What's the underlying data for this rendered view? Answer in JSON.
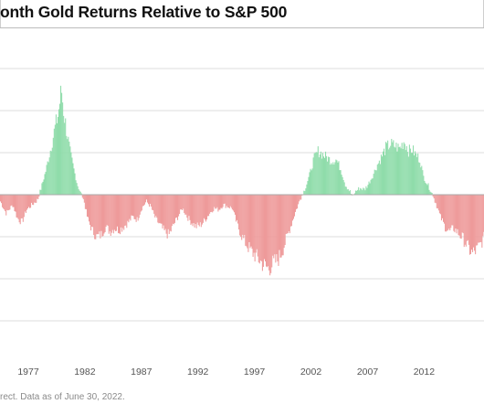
{
  "title": "onth Gold Returns Relative to S&P 500",
  "footer": "rect. Data as of June 30, 2022.",
  "colors": {
    "positive": "#8fdcaa",
    "negative": "#ee9a9a",
    "gridline": "#dddddd",
    "zeroline": "#aaaaaa"
  },
  "chart_data": {
    "type": "bar",
    "title": "onth Gold Returns Relative to S&P 500",
    "xlabel": "",
    "ylabel": "",
    "grid": true,
    "x_ticks": [
      "1977",
      "1982",
      "1987",
      "1992",
      "1997",
      "2002",
      "2007",
      "2012"
    ],
    "x_range": [
      1974.5,
      2017.3
    ],
    "y_range": [
      -150,
      150
    ],
    "anchors": [
      [
        1974.5,
        -8
      ],
      [
        1975.0,
        -22
      ],
      [
        1975.6,
        -12
      ],
      [
        1976.0,
        -28
      ],
      [
        1976.4,
        -33
      ],
      [
        1976.8,
        -18
      ],
      [
        1977.3,
        -12
      ],
      [
        1977.8,
        -6
      ],
      [
        1978.1,
        8
      ],
      [
        1978.5,
        28
      ],
      [
        1978.9,
        52
      ],
      [
        1979.3,
        78
      ],
      [
        1979.6,
        95
      ],
      [
        1979.9,
        125
      ],
      [
        1980.1,
        98
      ],
      [
        1980.4,
        72
      ],
      [
        1980.7,
        48
      ],
      [
        1981.0,
        30
      ],
      [
        1981.3,
        12
      ],
      [
        1981.6,
        2
      ],
      [
        1981.9,
        -8
      ],
      [
        1982.2,
        -28
      ],
      [
        1982.6,
        -42
      ],
      [
        1983.0,
        -50
      ],
      [
        1983.4,
        -48
      ],
      [
        1983.8,
        -38
      ],
      [
        1984.2,
        -44
      ],
      [
        1984.6,
        -40
      ],
      [
        1985.0,
        -42
      ],
      [
        1985.4,
        -38
      ],
      [
        1985.8,
        -33
      ],
      [
        1986.2,
        -26
      ],
      [
        1986.6,
        -30
      ],
      [
        1987.0,
        -16
      ],
      [
        1987.4,
        -8
      ],
      [
        1987.8,
        -14
      ],
      [
        1988.2,
        -28
      ],
      [
        1988.6,
        -36
      ],
      [
        1989.0,
        -44
      ],
      [
        1989.4,
        -48
      ],
      [
        1989.8,
        -36
      ],
      [
        1990.2,
        -26
      ],
      [
        1990.6,
        -16
      ],
      [
        1991.0,
        -26
      ],
      [
        1991.4,
        -33
      ],
      [
        1991.8,
        -38
      ],
      [
        1992.2,
        -36
      ],
      [
        1992.6,
        -30
      ],
      [
        1993.0,
        -22
      ],
      [
        1993.4,
        -16
      ],
      [
        1993.8,
        -18
      ],
      [
        1994.2,
        -12
      ],
      [
        1994.6,
        -14
      ],
      [
        1995.0,
        -16
      ],
      [
        1995.4,
        -34
      ],
      [
        1995.8,
        -48
      ],
      [
        1996.2,
        -58
      ],
      [
        1996.6,
        -66
      ],
      [
        1997.0,
        -72
      ],
      [
        1997.4,
        -78
      ],
      [
        1997.8,
        -84
      ],
      [
        1998.2,
        -88
      ],
      [
        1998.6,
        -82
      ],
      [
        1999.0,
        -78
      ],
      [
        1999.4,
        -68
      ],
      [
        1999.8,
        -52
      ],
      [
        2000.2,
        -36
      ],
      [
        2000.6,
        -20
      ],
      [
        2001.0,
        -6
      ],
      [
        2001.4,
        6
      ],
      [
        2001.8,
        22
      ],
      [
        2002.2,
        42
      ],
      [
        2002.6,
        52
      ],
      [
        2003.0,
        48
      ],
      [
        2003.4,
        44
      ],
      [
        2003.8,
        40
      ],
      [
        2004.2,
        42
      ],
      [
        2004.6,
        30
      ],
      [
        2005.0,
        12
      ],
      [
        2005.4,
        4
      ],
      [
        2005.6,
        -2
      ],
      [
        2005.9,
        4
      ],
      [
        2006.3,
        8
      ],
      [
        2006.7,
        6
      ],
      [
        2007.0,
        12
      ],
      [
        2007.4,
        22
      ],
      [
        2007.8,
        35
      ],
      [
        2008.2,
        45
      ],
      [
        2008.6,
        56
      ],
      [
        2009.0,
        60
      ],
      [
        2009.4,
        58
      ],
      [
        2009.8,
        55
      ],
      [
        2010.2,
        64
      ],
      [
        2010.6,
        52
      ],
      [
        2010.9,
        54
      ],
      [
        2011.2,
        48
      ],
      [
        2011.6,
        42
      ],
      [
        2011.9,
        22
      ],
      [
        2012.2,
        14
      ],
      [
        2012.6,
        4
      ],
      [
        2013.0,
        -10
      ],
      [
        2013.4,
        -26
      ],
      [
        2013.8,
        -38
      ],
      [
        2014.2,
        -44
      ],
      [
        2014.6,
        -40
      ],
      [
        2015.0,
        -46
      ],
      [
        2015.4,
        -52
      ],
      [
        2015.8,
        -62
      ],
      [
        2016.2,
        -70
      ],
      [
        2016.6,
        -66
      ],
      [
        2017.0,
        -58
      ],
      [
        2017.3,
        -50
      ]
    ]
  }
}
